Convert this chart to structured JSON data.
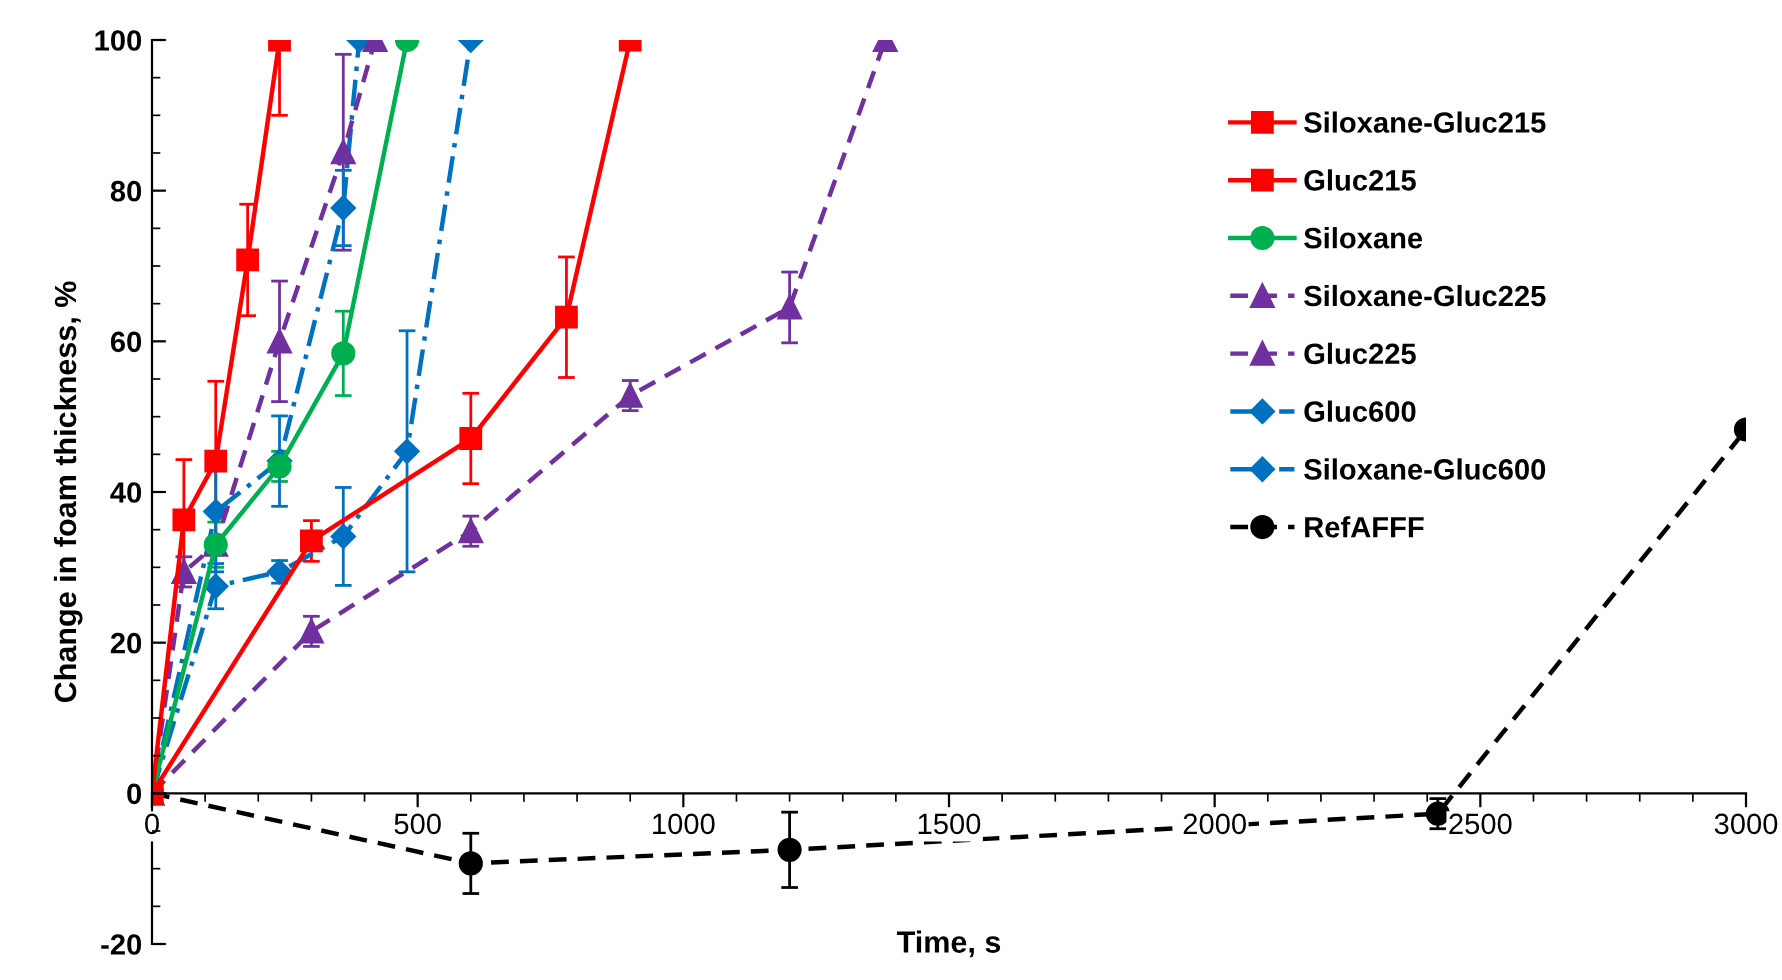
{
  "chart_data": {
    "type": "line",
    "xlabel": "Time, s",
    "ylabel": "Change in foam thickness, %",
    "xlim": [
      0,
      3000
    ],
    "xticks": [
      0,
      500,
      1000,
      1500,
      2000,
      2500,
      3000
    ],
    "ylim": [
      -20,
      100
    ],
    "yticks": [
      -20,
      0,
      20,
      40,
      60,
      80,
      100
    ],
    "legend": "right",
    "grid": false,
    "series": [
      {
        "name": "Siloxane-Gluc215",
        "color": "#ff0000",
        "marker": "square",
        "line_style": "solid",
        "x": [
          0,
          300,
          600,
          780,
          900
        ],
        "values": [
          0,
          33.5,
          47.1,
          63.2,
          100
        ],
        "errors": [
          null,
          2.7,
          6,
          8,
          null
        ]
      },
      {
        "name": "Gluc215",
        "color": "#ff0000",
        "marker": "square",
        "line_style": "solid",
        "x": [
          0,
          60,
          120,
          180,
          240
        ],
        "values": [
          0,
          36.3,
          44.1,
          70.8,
          100
        ],
        "errors": [
          null,
          8,
          10.6,
          7.4,
          [
            90,
            100
          ]
        ]
      },
      {
        "name": "Siloxane",
        "color": "#00b050",
        "marker": "circle",
        "line_style": "solid",
        "x": [
          0,
          120,
          240,
          360,
          480
        ],
        "values": [
          0,
          33,
          43.4,
          58.4,
          100
        ],
        "errors": [
          null,
          3,
          2,
          5.6,
          null
        ]
      },
      {
        "name": "Siloxane-Gluc225",
        "color": "#7030a0",
        "marker": "triangle",
        "line_style": "dashed",
        "x": [
          0,
          300,
          600,
          900,
          1200,
          1380
        ],
        "values": [
          0,
          21.5,
          34.8,
          52.8,
          64.5,
          100
        ],
        "errors": [
          null,
          2,
          2,
          2,
          4.7,
          null
        ]
      },
      {
        "name": "Gluc225",
        "color": "#7030a0",
        "marker": "triangle",
        "line_style": "dashed",
        "x": [
          0,
          60,
          120,
          240,
          360,
          420
        ],
        "values": [
          0,
          29.4,
          33,
          60,
          85.1,
          100
        ],
        "errors": [
          null,
          2,
          null,
          8,
          13,
          null
        ]
      },
      {
        "name": "Gluc600",
        "color": "#0070c0",
        "marker": "diamond",
        "line_style": "dashdot",
        "x": [
          0,
          120,
          240,
          360,
          390
        ],
        "values": [
          0,
          37.4,
          44.1,
          77.7,
          100
        ],
        "errors": [
          null,
          8,
          6,
          5,
          null
        ]
      },
      {
        "name": "Siloxane-Gluc600",
        "color": "#0070c0",
        "marker": "diamond",
        "line_style": "dashdot",
        "x": [
          0,
          120,
          240,
          360,
          480,
          600
        ],
        "values": [
          0,
          27.5,
          29.4,
          34.1,
          45.4,
          100
        ],
        "errors": [
          null,
          3,
          1.5,
          6.5,
          16,
          null
        ]
      },
      {
        "name": "RefAFFF",
        "color": "#000000",
        "marker": "circle",
        "line_style": "dashed",
        "x": [
          0,
          600,
          1200,
          2420,
          3000
        ],
        "values": [
          0,
          -9.3,
          -7.5,
          -2.7,
          48.3
        ],
        "errors": [
          null,
          4,
          5,
          2,
          null
        ]
      }
    ]
  }
}
